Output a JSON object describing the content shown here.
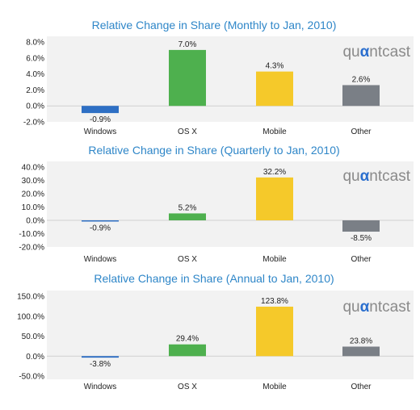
{
  "brand": {
    "prefix": "qu",
    "accent_letter": "α",
    "suffix": "ntcast",
    "accent_color": "#2b6fce"
  },
  "colors": {
    "Windows": "#2e6fc4",
    "OS X": "#4eb04e",
    "Mobile": "#f5c92a",
    "Other": "#7a7f86"
  },
  "chart_data": [
    {
      "type": "bar",
      "title": "Relative Change in Share (Monthly to Jan, 2010)",
      "categories": [
        "Windows",
        "OS X",
        "Mobile",
        "Other"
      ],
      "values": [
        -0.9,
        7.0,
        4.3,
        2.6
      ],
      "value_labels": [
        "-0.9%",
        "7.0%",
        "4.3%",
        "2.6%"
      ],
      "yticks": [
        "8.0%",
        "6.0%",
        "4.0%",
        "2.0%",
        "0.0%",
        "-2.0%"
      ],
      "ylim": [
        -2,
        8
      ],
      "grid": false,
      "legend": "none"
    },
    {
      "type": "bar",
      "title": "Relative Change in Share (Quarterly to Jan, 2010)",
      "categories": [
        "Windows",
        "OS X",
        "Mobile",
        "Other"
      ],
      "values": [
        -0.9,
        5.2,
        32.2,
        -8.5
      ],
      "value_labels": [
        "-0.9%",
        "5.2%",
        "32.2%",
        "-8.5%"
      ],
      "yticks": [
        "40.0%",
        "30.0%",
        "20.0%",
        "10.0%",
        "0.0%",
        "-10.0%",
        "-20.0%"
      ],
      "ylim": [
        -20,
        40
      ],
      "grid": false,
      "legend": "none"
    },
    {
      "type": "bar",
      "title": "Relative Change in Share (Annual to Jan, 2010)",
      "categories": [
        "Windows",
        "OS X",
        "Mobile",
        "Other"
      ],
      "values": [
        -3.8,
        29.4,
        123.8,
        23.8
      ],
      "value_labels": [
        "-3.8%",
        "29.4%",
        "123.8%",
        "23.8%"
      ],
      "yticks": [
        "150.0%",
        "100.0%",
        "50.0%",
        "0.0%",
        "-50.0%"
      ],
      "ylim": [
        -50,
        150
      ],
      "grid": false,
      "legend": "none"
    }
  ]
}
